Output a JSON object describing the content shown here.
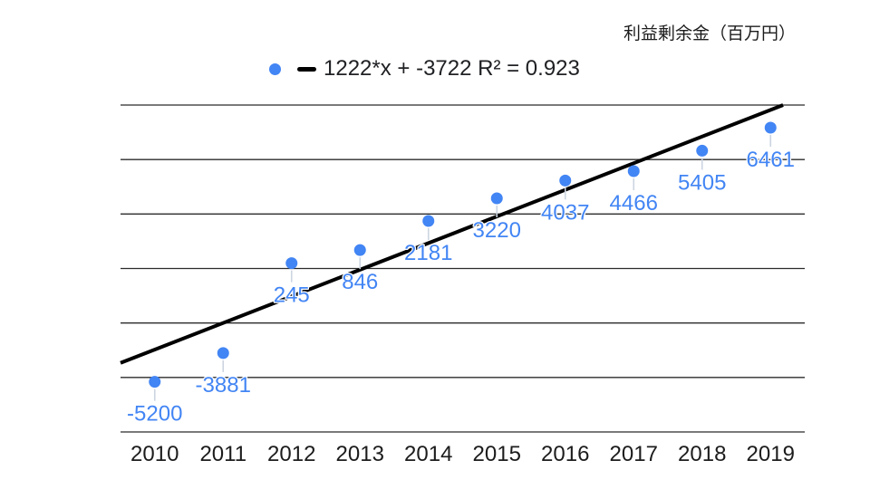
{
  "title": "利益剰余金（百万円）",
  "legend": {
    "trend_equation": "1222*x + -3722 R² = 0.923"
  },
  "colors": {
    "point": "#4285f4",
    "data_label": "#4285f4",
    "trendline": "#000000",
    "gridline": "#2b2b2b",
    "connector": "#ccd4e0",
    "axis_text": "#1c1c1c",
    "background": "#ffffff"
  },
  "chart_data": {
    "type": "scatter",
    "title": "利益剰余金（百万円）",
    "categories": [
      "2010",
      "2011",
      "2012",
      "2013",
      "2014",
      "2015",
      "2016",
      "2017",
      "2018",
      "2019"
    ],
    "series": [
      {
        "name": "利益剰余金（百万円）",
        "values": [
          -5200,
          -3881,
          245,
          846,
          2181,
          3220,
          4037,
          4466,
          5405,
          6461
        ]
      }
    ],
    "point_labels": [
      "-5200",
      "-3881",
      "245",
      "846",
      "2181",
      "3220",
      "4037",
      "4466",
      "5405",
      "6461"
    ],
    "trendline": {
      "slope": 1222,
      "intercept": -3722,
      "r_squared": 0.923,
      "label": "1222*x + -3722 R² = 0.923",
      "x_index_base": 0
    },
    "xlabel": "",
    "ylabel": "",
    "ylim": [
      -7500,
      7500
    ],
    "grid_step": 2500,
    "grid": "horizontal-only",
    "y_axis_labels_shown": false,
    "legend_position": "top"
  }
}
